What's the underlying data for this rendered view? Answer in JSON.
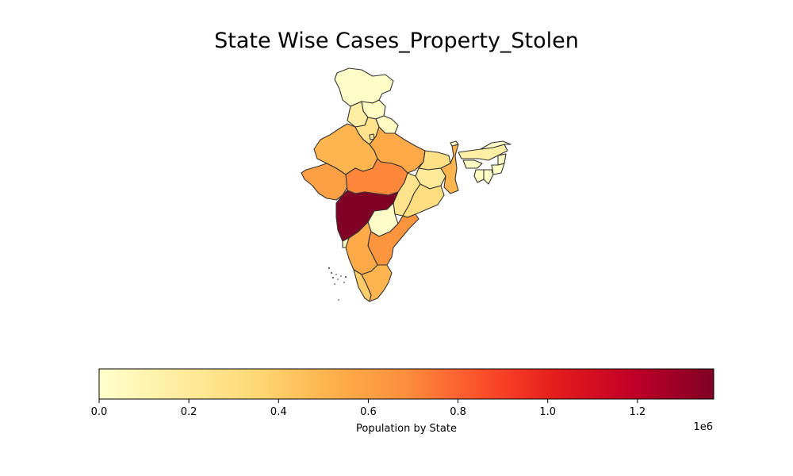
{
  "title": "State Wise Cases_Property_Stolen",
  "colorbar": {
    "label": "Population by State",
    "offset_text": "1e6",
    "cmap": [
      "#ffffcc",
      "#ffeda0",
      "#fed976",
      "#feb24c",
      "#fd8d3c",
      "#fc4e2a",
      "#e31a1c",
      "#bd0026",
      "#800026"
    ],
    "vmin": 0,
    "vmax": 1.37,
    "ticks": [
      {
        "value": 0.0,
        "label": "0.0"
      },
      {
        "value": 0.2,
        "label": "0.2"
      },
      {
        "value": 0.4,
        "label": "0.4"
      },
      {
        "value": 0.6,
        "label": "0.6"
      },
      {
        "value": 0.8,
        "label": "0.8"
      },
      {
        "value": 1.0,
        "label": "1.0"
      },
      {
        "value": 1.2,
        "label": "1.2"
      }
    ]
  },
  "states": [
    {
      "name": "jammu-kashmir",
      "value": 0.02
    },
    {
      "name": "himachal-pradesh",
      "value": 0.03
    },
    {
      "name": "punjab",
      "value": 0.16
    },
    {
      "name": "uttarakhand",
      "value": 0.04
    },
    {
      "name": "haryana",
      "value": 0.25
    },
    {
      "name": "delhi",
      "value": 0.2
    },
    {
      "name": "rajasthan",
      "value": 0.5
    },
    {
      "name": "uttar-pradesh",
      "value": 0.55
    },
    {
      "name": "bihar",
      "value": 0.28
    },
    {
      "name": "gujarat",
      "value": 0.6
    },
    {
      "name": "madhya-pradesh",
      "value": 0.7
    },
    {
      "name": "jharkhand",
      "value": 0.2
    },
    {
      "name": "west-bengal",
      "value": 0.5
    },
    {
      "name": "chhattisgarh",
      "value": 0.25
    },
    {
      "name": "odisha",
      "value": 0.3
    },
    {
      "name": "maharashtra",
      "value": 1.37
    },
    {
      "name": "telangana",
      "value": 0.02
    },
    {
      "name": "andhra-pradesh",
      "value": 0.65
    },
    {
      "name": "karnataka",
      "value": 0.55
    },
    {
      "name": "goa",
      "value": 0.05
    },
    {
      "name": "kerala",
      "value": 0.4
    },
    {
      "name": "tamil-nadu",
      "value": 0.5
    },
    {
      "name": "sikkim",
      "value": 0.03
    },
    {
      "name": "assam",
      "value": 0.15
    },
    {
      "name": "arunachal-pradesh",
      "value": 0.02
    },
    {
      "name": "meghalaya",
      "value": 0.05
    },
    {
      "name": "nagaland",
      "value": 0.02
    },
    {
      "name": "manipur",
      "value": 0.02
    },
    {
      "name": "mizoram",
      "value": 0.02
    },
    {
      "name": "tripura",
      "value": 0.05
    }
  ]
}
